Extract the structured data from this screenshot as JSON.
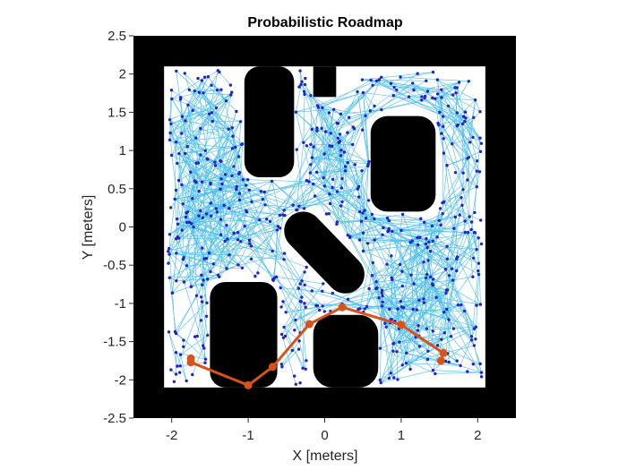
{
  "chart_data": {
    "type": "scatter",
    "title": "Probabilistic Roadmap",
    "xlabel": "X [meters]",
    "ylabel": "Y [meters]",
    "xlim": [
      -2.5,
      2.5
    ],
    "ylim": [
      -2.5,
      2.5
    ],
    "xticks": [
      "-2",
      "-1",
      "0",
      "1",
      "2"
    ],
    "yticks": [
      "2.5",
      "2",
      "1.5",
      "1",
      "0.5",
      "0",
      "-0.5",
      "-1",
      "-1.5",
      "-2",
      "-2.5"
    ],
    "grid": false,
    "colors": {
      "obstacle": "#000000",
      "free_space": "#ffffff",
      "edges": "#4dbeee",
      "nodes": "#2323c8",
      "path": "#d95319"
    },
    "map": {
      "free_region": {
        "x": [
          -2.1,
          2.1
        ],
        "y": [
          -2.1,
          2.1
        ]
      },
      "obstacles": [
        {
          "kind": "rect",
          "x": [
            -1.05,
            -0.4
          ],
          "y": [
            0.65,
            2.1
          ],
          "corner_radius": 0.2
        },
        {
          "kind": "rect",
          "x": [
            -0.15,
            0.15
          ],
          "y": [
            1.7,
            2.1
          ],
          "corner_radius": 0
        },
        {
          "kind": "rect",
          "x": [
            0.6,
            1.45
          ],
          "y": [
            0.2,
            1.45
          ],
          "corner_radius": 0.22
        },
        {
          "kind": "rect",
          "x": [
            -1.5,
            -0.62
          ],
          "y": [
            -2.1,
            -0.72
          ],
          "corner_radius": 0.2
        },
        {
          "kind": "rect",
          "x": [
            -0.15,
            0.7
          ],
          "y": [
            -2.1,
            -1.15
          ],
          "corner_radius": 0.25
        },
        {
          "kind": "slot",
          "x1": -0.28,
          "y1": -0.05,
          "x2": 0.27,
          "y2": -0.62,
          "width": 0.5
        }
      ]
    },
    "path": {
      "name": "",
      "points": [
        [
          -1.75,
          -1.72
        ],
        [
          -1.75,
          -1.77
        ],
        [
          -1.0,
          -2.07
        ],
        [
          -0.68,
          -1.83
        ],
        [
          -0.2,
          -1.27
        ],
        [
          0.23,
          -1.05
        ],
        [
          1.0,
          -1.28
        ],
        [
          1.55,
          -1.65
        ],
        [
          1.52,
          -1.75
        ]
      ]
    },
    "roadmap": {
      "node_count": 620,
      "edge_count": 6000,
      "connection_radius": 1.0,
      "seed": 17
    }
  }
}
